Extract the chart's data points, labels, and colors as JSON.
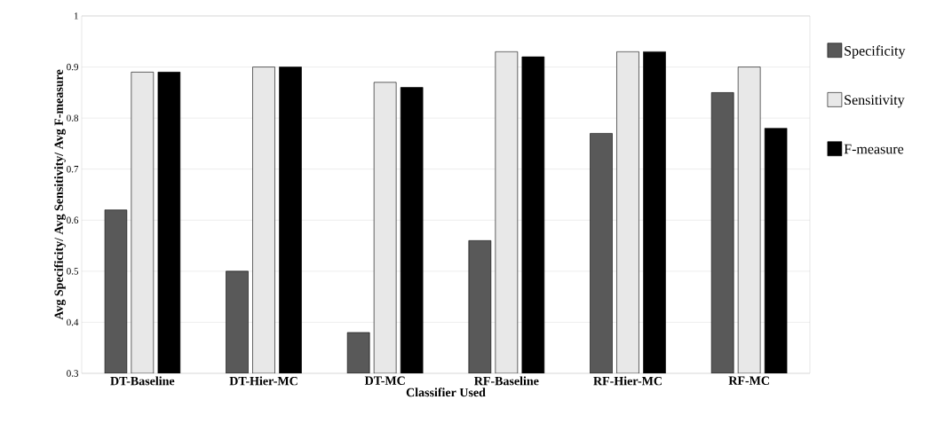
{
  "chart_data": {
    "type": "bar",
    "xlabel": "Classifier Used",
    "ylabel": "Avg Specificity/ Avg Sensitivity/ Avg F-measure",
    "categories": [
      "DT-Baseline",
      "DT-Hier-MC",
      "DT-MC",
      "RF-Baseline",
      "RF-Hier-MC",
      "RF-MC"
    ],
    "series": [
      {
        "name": "Specificity",
        "color": "#595959",
        "values": [
          0.62,
          0.5,
          0.38,
          0.56,
          0.77,
          0.85
        ]
      },
      {
        "name": "Sensitivity",
        "color": "#e8e8e8",
        "values": [
          0.89,
          0.9,
          0.87,
          0.93,
          0.93,
          0.9
        ]
      },
      {
        "name": "F-measure",
        "color": "#000000",
        "values": [
          0.89,
          0.9,
          0.86,
          0.92,
          0.93,
          0.78
        ]
      }
    ],
    "ylim": [
      0.3,
      1
    ],
    "yticks": [
      0.3,
      0.4,
      0.5,
      0.6,
      0.7,
      0.8,
      0.9,
      1
    ],
    "grid": "y",
    "legend": "right"
  }
}
